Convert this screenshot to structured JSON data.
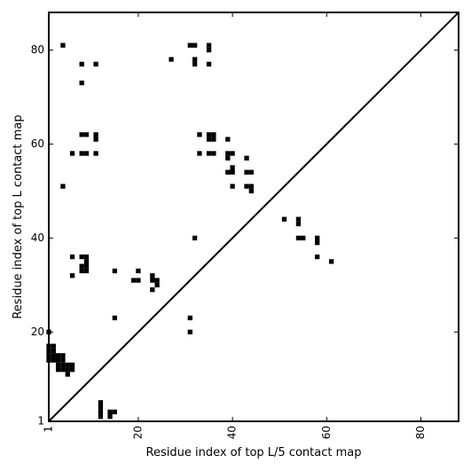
{
  "chart_data": {
    "type": "scatter",
    "xlabel": "Residue index of top L/5 contact map",
    "ylabel": "Residue index of top L contact map",
    "xlim": [
      1,
      88
    ],
    "ylim": [
      1,
      88
    ],
    "x_ticks": [
      1,
      20,
      40,
      60,
      80
    ],
    "y_ticks": [
      1,
      20,
      40,
      60,
      80
    ],
    "x_tick_labels": [
      "1",
      "20",
      "40",
      "60",
      "80"
    ],
    "y_tick_labels": [
      "1",
      "20",
      "40",
      "60",
      "80"
    ],
    "diagonal": true,
    "grid": false,
    "marker_color": "#000000",
    "series": [
      {
        "points": [
          [
            4,
            81
          ],
          [
            31,
            81
          ],
          [
            32,
            81
          ],
          [
            35,
            81
          ],
          [
            35,
            80
          ],
          [
            8,
            77
          ],
          [
            11,
            77
          ],
          [
            27,
            78
          ],
          [
            32,
            78
          ],
          [
            32,
            77
          ],
          [
            35,
            77
          ],
          [
            8,
            73
          ],
          [
            8,
            62
          ],
          [
            9,
            62
          ],
          [
            11,
            62
          ],
          [
            11,
            61
          ],
          [
            33,
            62
          ],
          [
            35,
            62
          ],
          [
            36,
            62
          ],
          [
            35,
            61
          ],
          [
            36,
            61
          ],
          [
            39,
            61
          ],
          [
            6,
            58
          ],
          [
            8,
            58
          ],
          [
            9,
            58
          ],
          [
            11,
            58
          ],
          [
            33,
            58
          ],
          [
            35,
            58
          ],
          [
            36,
            58
          ],
          [
            39,
            58
          ],
          [
            40,
            58
          ],
          [
            39,
            57
          ],
          [
            43,
            57
          ],
          [
            40,
            55
          ],
          [
            39,
            54
          ],
          [
            40,
            54
          ],
          [
            43,
            54
          ],
          [
            44,
            54
          ],
          [
            4,
            51
          ],
          [
            40,
            51
          ],
          [
            43,
            51
          ],
          [
            44,
            51
          ],
          [
            44,
            50
          ],
          [
            51,
            44
          ],
          [
            54,
            44
          ],
          [
            54,
            43
          ],
          [
            32,
            40
          ],
          [
            54,
            40
          ],
          [
            55,
            40
          ],
          [
            58,
            40
          ],
          [
            58,
            39
          ],
          [
            6,
            36
          ],
          [
            8,
            36
          ],
          [
            9,
            36
          ],
          [
            58,
            36
          ],
          [
            9,
            35
          ],
          [
            61,
            35
          ],
          [
            8,
            34
          ],
          [
            9,
            34
          ],
          [
            8,
            33
          ],
          [
            9,
            33
          ],
          [
            15,
            33
          ],
          [
            20,
            33
          ],
          [
            6,
            32
          ],
          [
            23,
            32
          ],
          [
            20,
            31
          ],
          [
            19,
            31
          ],
          [
            23,
            31
          ],
          [
            24,
            31
          ],
          [
            24,
            30
          ],
          [
            23,
            29
          ],
          [
            15,
            23
          ],
          [
            31,
            23
          ],
          [
            1,
            20
          ],
          [
            31,
            20
          ],
          [
            1,
            17
          ],
          [
            2,
            17
          ],
          [
            1,
            16
          ],
          [
            2,
            16
          ],
          [
            1,
            15
          ],
          [
            2,
            15
          ],
          [
            3,
            15
          ],
          [
            4,
            15
          ],
          [
            1,
            14
          ],
          [
            2,
            14
          ],
          [
            3,
            14
          ],
          [
            4,
            14
          ],
          [
            3,
            13
          ],
          [
            4,
            13
          ],
          [
            5,
            13
          ],
          [
            6,
            13
          ],
          [
            3,
            12
          ],
          [
            4,
            12
          ],
          [
            5,
            12
          ],
          [
            6,
            12
          ],
          [
            5,
            11
          ],
          [
            12,
            5
          ],
          [
            12,
            4
          ],
          [
            12,
            3
          ],
          [
            14,
            3
          ],
          [
            15,
            3
          ],
          [
            12,
            2
          ],
          [
            14,
            2
          ]
        ]
      }
    ]
  }
}
